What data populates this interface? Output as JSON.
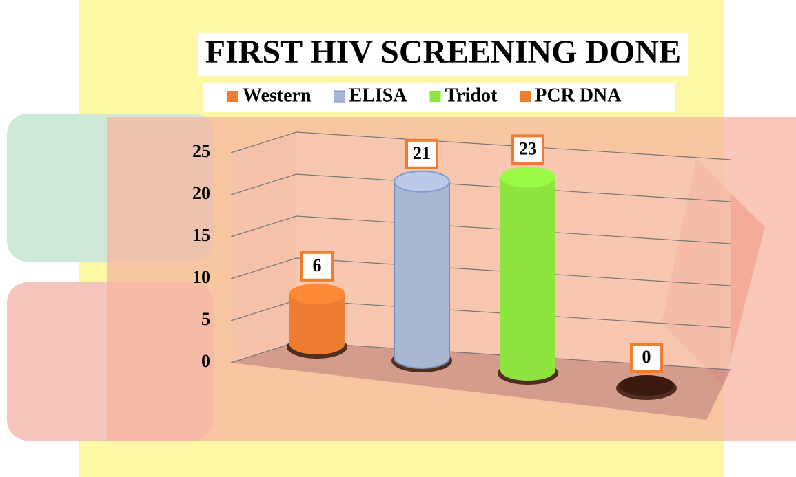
{
  "chart_data": {
    "type": "bar",
    "title": "FIRST HIV SCREENING  DONE",
    "categories": [
      null
    ],
    "series": [
      {
        "name": "Western",
        "color": "#ed7d31",
        "values": [
          6
        ]
      },
      {
        "name": "ELISA",
        "color": "#a9b8d2",
        "values": [
          21
        ]
      },
      {
        "name": "Tridot",
        "color": "#8ee53f",
        "values": [
          23
        ]
      },
      {
        "name": "PCR DNA",
        "color": "#ed7d31",
        "values": [
          0
        ]
      }
    ],
    "ylim": [
      0,
      25
    ],
    "yticks": [
      0,
      5,
      10,
      15,
      20,
      25
    ],
    "grid": true,
    "legend": "top"
  }
}
